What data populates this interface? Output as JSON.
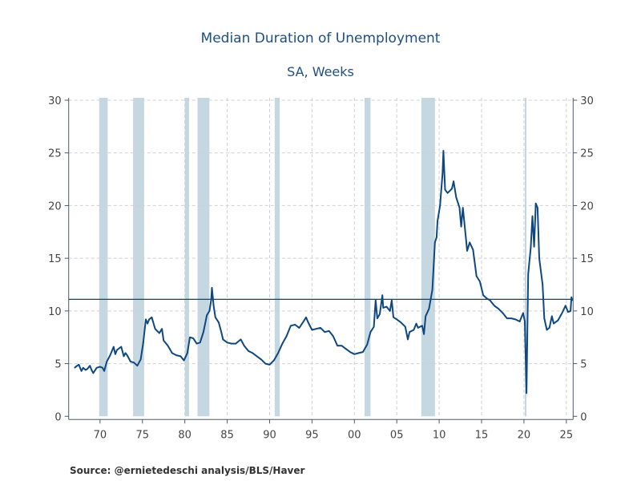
{
  "chart_data": {
    "type": "line",
    "title": "Median Duration of Unemployment",
    "subtitle": "SA, Weeks",
    "source": "Source:  @ernietedeschi analysis/BLS/Haver",
    "xlim": [
      1966.3,
      2025.8
    ],
    "ylim": [
      0,
      30
    ],
    "yticks": [
      0,
      5,
      10,
      15,
      20,
      25,
      30
    ],
    "xticks": [
      {
        "year": 1970,
        "label": "70"
      },
      {
        "year": 1975,
        "label": "75"
      },
      {
        "year": 1980,
        "label": "80"
      },
      {
        "year": 1985,
        "label": "85"
      },
      {
        "year": 1990,
        "label": "90"
      },
      {
        "year": 1995,
        "label": "95"
      },
      {
        "year": 2000,
        "label": "00"
      },
      {
        "year": 2005,
        "label": "05"
      },
      {
        "year": 2010,
        "label": "10"
      },
      {
        "year": 2015,
        "label": "15"
      },
      {
        "year": 2020,
        "label": "20"
      },
      {
        "year": 2025,
        "label": "25"
      }
    ],
    "grid": true,
    "y_axis_both_sides": true,
    "reference_line": 11.1,
    "recessions": [
      [
        1969.9,
        1970.9
      ],
      [
        1973.9,
        1975.2
      ],
      [
        1980.0,
        1980.5
      ],
      [
        1981.5,
        1982.9
      ],
      [
        1990.6,
        1991.2
      ],
      [
        2001.2,
        2001.9
      ],
      [
        2007.9,
        2009.5
      ],
      [
        2020.1,
        2020.3
      ]
    ],
    "colors": {
      "line": "#0f4780",
      "recession": "#c5d8e1",
      "reference": "#1f3f60",
      "grid": "#d0d0d0"
    },
    "series": [
      {
        "points": [
          [
            1967.0,
            4.6
          ],
          [
            1967.3,
            4.8
          ],
          [
            1967.5,
            4.9
          ],
          [
            1967.8,
            4.3
          ],
          [
            1968.0,
            4.6
          ],
          [
            1968.3,
            4.4
          ],
          [
            1968.5,
            4.5
          ],
          [
            1968.8,
            4.8
          ],
          [
            1969.0,
            4.4
          ],
          [
            1969.2,
            4.1
          ],
          [
            1969.6,
            4.6
          ],
          [
            1970.0,
            4.7
          ],
          [
            1970.3,
            4.6
          ],
          [
            1970.5,
            4.3
          ],
          [
            1970.8,
            5.2
          ],
          [
            1971.2,
            5.8
          ],
          [
            1971.6,
            6.6
          ],
          [
            1971.8,
            5.9
          ],
          [
            1972.0,
            6.3
          ],
          [
            1972.5,
            6.6
          ],
          [
            1972.8,
            5.7
          ],
          [
            1973.0,
            6.0
          ],
          [
            1973.2,
            5.8
          ],
          [
            1973.6,
            5.2
          ],
          [
            1974.0,
            5.1
          ],
          [
            1974.4,
            4.8
          ],
          [
            1974.8,
            5.4
          ],
          [
            1975.1,
            7.0
          ],
          [
            1975.4,
            9.2
          ],
          [
            1975.6,
            8.8
          ],
          [
            1975.8,
            9.2
          ],
          [
            1976.1,
            9.4
          ],
          [
            1976.5,
            8.3
          ],
          [
            1977.0,
            7.9
          ],
          [
            1977.3,
            8.3
          ],
          [
            1977.5,
            7.2
          ],
          [
            1978.0,
            6.7
          ],
          [
            1978.5,
            6.0
          ],
          [
            1979.0,
            5.8
          ],
          [
            1979.5,
            5.7
          ],
          [
            1979.9,
            5.3
          ],
          [
            1980.3,
            6.0
          ],
          [
            1980.6,
            7.5
          ],
          [
            1981.0,
            7.4
          ],
          [
            1981.4,
            6.9
          ],
          [
            1981.8,
            7.0
          ],
          [
            1982.2,
            8.0
          ],
          [
            1982.6,
            9.6
          ],
          [
            1982.9,
            10.0
          ],
          [
            1983.1,
            11.0
          ],
          [
            1983.2,
            12.2
          ],
          [
            1983.4,
            10.5
          ],
          [
            1983.6,
            9.4
          ],
          [
            1984.0,
            8.9
          ],
          [
            1984.3,
            8.0
          ],
          [
            1984.5,
            7.3
          ],
          [
            1985.0,
            7.0
          ],
          [
            1985.5,
            6.9
          ],
          [
            1986.0,
            6.9
          ],
          [
            1986.6,
            7.3
          ],
          [
            1987.0,
            6.7
          ],
          [
            1987.5,
            6.2
          ],
          [
            1988.0,
            6.0
          ],
          [
            1988.5,
            5.7
          ],
          [
            1989.0,
            5.4
          ],
          [
            1989.5,
            5.0
          ],
          [
            1990.0,
            4.9
          ],
          [
            1990.5,
            5.3
          ],
          [
            1991.0,
            6.0
          ],
          [
            1991.5,
            6.9
          ],
          [
            1992.0,
            7.6
          ],
          [
            1992.5,
            8.6
          ],
          [
            1993.0,
            8.7
          ],
          [
            1993.5,
            8.4
          ],
          [
            1994.0,
            9.0
          ],
          [
            1994.3,
            9.4
          ],
          [
            1994.5,
            9.0
          ],
          [
            1995.0,
            8.2
          ],
          [
            1995.5,
            8.3
          ],
          [
            1996.0,
            8.4
          ],
          [
            1996.5,
            8.0
          ],
          [
            1997.0,
            8.1
          ],
          [
            1997.5,
            7.6
          ],
          [
            1998.0,
            6.7
          ],
          [
            1998.5,
            6.7
          ],
          [
            1999.0,
            6.4
          ],
          [
            1999.5,
            6.1
          ],
          [
            2000.0,
            5.9
          ],
          [
            2000.5,
            6.0
          ],
          [
            2001.0,
            6.1
          ],
          [
            2001.5,
            6.8
          ],
          [
            2001.9,
            8.0
          ],
          [
            2002.3,
            8.5
          ],
          [
            2002.5,
            11.0
          ],
          [
            2002.7,
            9.3
          ],
          [
            2003.0,
            9.7
          ],
          [
            2003.3,
            11.5
          ],
          [
            2003.4,
            10.3
          ],
          [
            2003.8,
            10.4
          ],
          [
            2004.2,
            10.0
          ],
          [
            2004.4,
            11.0
          ],
          [
            2004.6,
            9.4
          ],
          [
            2005.0,
            9.2
          ],
          [
            2005.5,
            8.9
          ],
          [
            2006.0,
            8.5
          ],
          [
            2006.3,
            7.3
          ],
          [
            2006.5,
            8.0
          ],
          [
            2007.0,
            8.2
          ],
          [
            2007.3,
            8.8
          ],
          [
            2007.5,
            8.4
          ],
          [
            2008.0,
            8.6
          ],
          [
            2008.2,
            7.8
          ],
          [
            2008.4,
            9.5
          ],
          [
            2008.8,
            10.2
          ],
          [
            2009.2,
            12.0
          ],
          [
            2009.5,
            16.5
          ],
          [
            2009.7,
            17.0
          ],
          [
            2009.8,
            18.5
          ],
          [
            2010.1,
            20.0
          ],
          [
            2010.4,
            23.0
          ],
          [
            2010.5,
            25.2
          ],
          [
            2010.7,
            21.5
          ],
          [
            2011.0,
            21.2
          ],
          [
            2011.5,
            21.6
          ],
          [
            2011.7,
            22.3
          ],
          [
            2012.0,
            20.8
          ],
          [
            2012.4,
            19.8
          ],
          [
            2012.6,
            18.0
          ],
          [
            2012.8,
            19.8
          ],
          [
            2013.2,
            16.5
          ],
          [
            2013.3,
            15.7
          ],
          [
            2013.6,
            16.5
          ],
          [
            2014.0,
            15.8
          ],
          [
            2014.4,
            13.3
          ],
          [
            2014.8,
            12.8
          ],
          [
            2015.2,
            11.5
          ],
          [
            2015.6,
            11.2
          ],
          [
            2016.0,
            11.0
          ],
          [
            2016.5,
            10.5
          ],
          [
            2017.0,
            10.2
          ],
          [
            2017.5,
            9.8
          ],
          [
            2018.0,
            9.3
          ],
          [
            2018.5,
            9.3
          ],
          [
            2019.0,
            9.2
          ],
          [
            2019.5,
            9.0
          ],
          [
            2019.9,
            9.8
          ],
          [
            2020.1,
            9.0
          ],
          [
            2020.3,
            2.2
          ],
          [
            2020.5,
            13.5
          ],
          [
            2020.8,
            16.0
          ],
          [
            2021.0,
            19.0
          ],
          [
            2021.2,
            16.1
          ],
          [
            2021.4,
            20.2
          ],
          [
            2021.6,
            19.8
          ],
          [
            2021.8,
            15.0
          ],
          [
            2022.2,
            12.5
          ],
          [
            2022.4,
            9.3
          ],
          [
            2022.7,
            8.2
          ],
          [
            2023.0,
            8.4
          ],
          [
            2023.3,
            9.5
          ],
          [
            2023.5,
            8.8
          ],
          [
            2024.0,
            9.1
          ],
          [
            2024.5,
            9.8
          ],
          [
            2024.9,
            10.5
          ],
          [
            2025.2,
            9.9
          ],
          [
            2025.5,
            10.0
          ],
          [
            2025.6,
            11.3
          ],
          [
            2025.7,
            11.0
          ]
        ]
      }
    ]
  }
}
